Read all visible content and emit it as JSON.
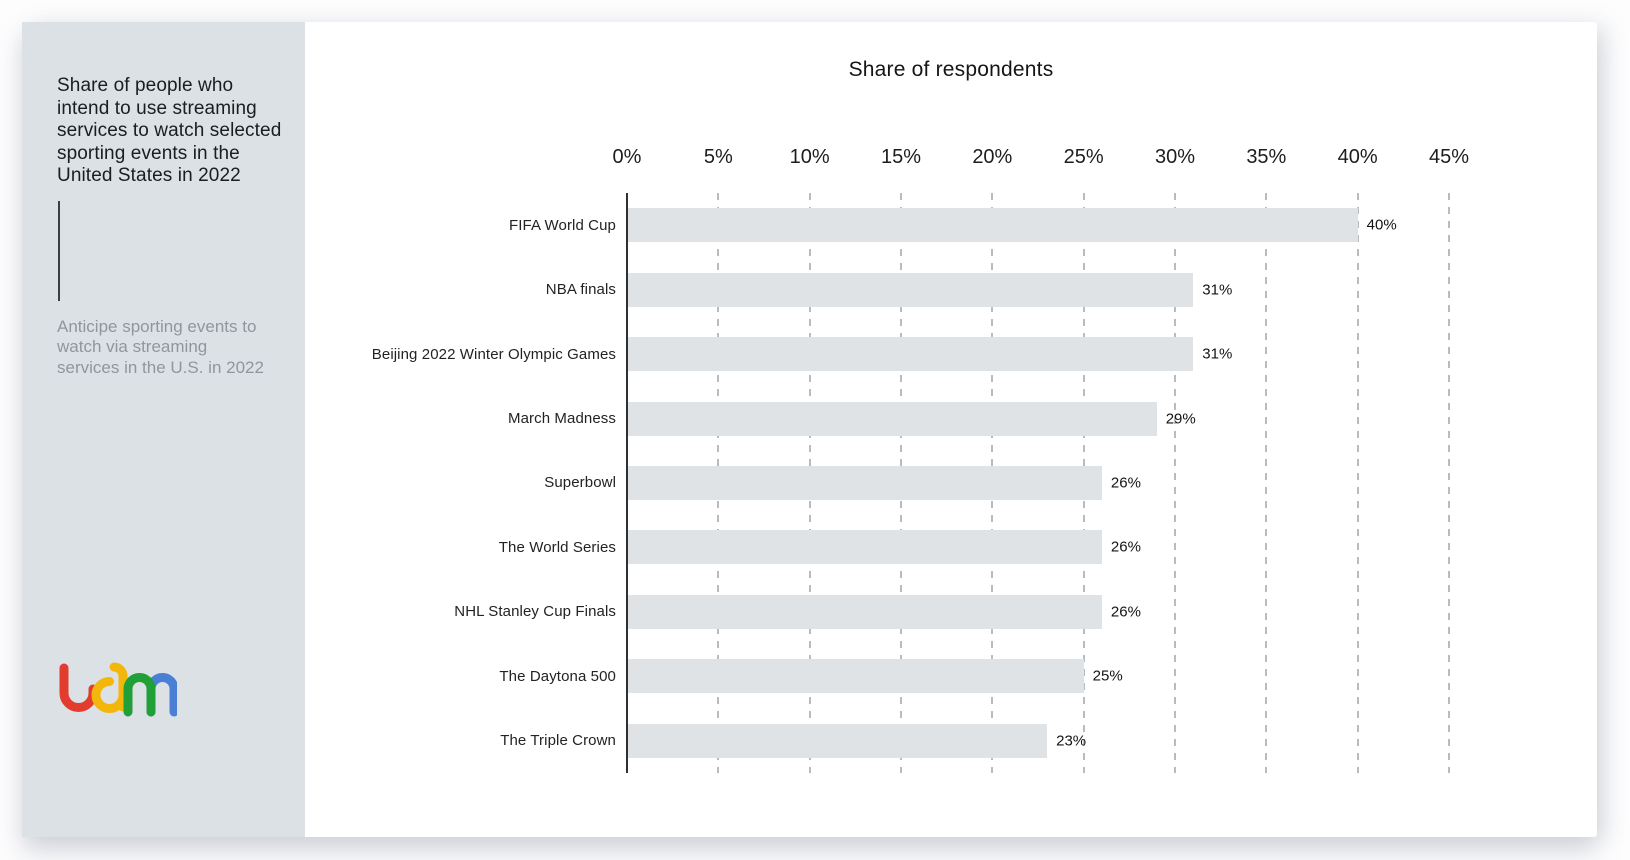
{
  "sidebar": {
    "title": "Share of people who intend to use streaming services to watch selected sporting events in the United States in 2022",
    "subtitle": "Anticipe sporting events to watch via streaming services in the U.S. in 2022",
    "logo_name": "ldm"
  },
  "brand": {
    "red": "#e23c2e",
    "yellow": "#f3b70c",
    "green": "#21a038",
    "blue": "#4b7fd6"
  },
  "colors": {
    "sidebar_bg": "#dce1e6",
    "bar_fill": "#e0e3e6",
    "subtitle_text": "#8e979e",
    "gridline": "#b7bcc0",
    "axis_line": "#2e3032"
  },
  "chart_data": {
    "type": "bar",
    "orientation": "horizontal",
    "title": "Share of respondents",
    "categories": [
      "FIFA World Cup",
      "NBA finals",
      "Beijing 2022 Winter Olympic Games",
      "March Madness",
      "Superbowl",
      "The World Series",
      "NHL Stanley Cup Finals",
      "The Daytona 500",
      "The  Triple Crown"
    ],
    "values": [
      40,
      31,
      31,
      29,
      26,
      26,
      26,
      25,
      23
    ],
    "value_labels": [
      "40%",
      "31%",
      "31%",
      "29%",
      "26%",
      "26%",
      "26%",
      "25%",
      "23%"
    ],
    "x_ticks": [
      "0%",
      "5%",
      "10%",
      "15%",
      "20%",
      "25%",
      "30%",
      "35%",
      "40%",
      "45%"
    ],
    "xlim": [
      0,
      45
    ],
    "grid": "dashed-vertical",
    "legend": "none"
  }
}
